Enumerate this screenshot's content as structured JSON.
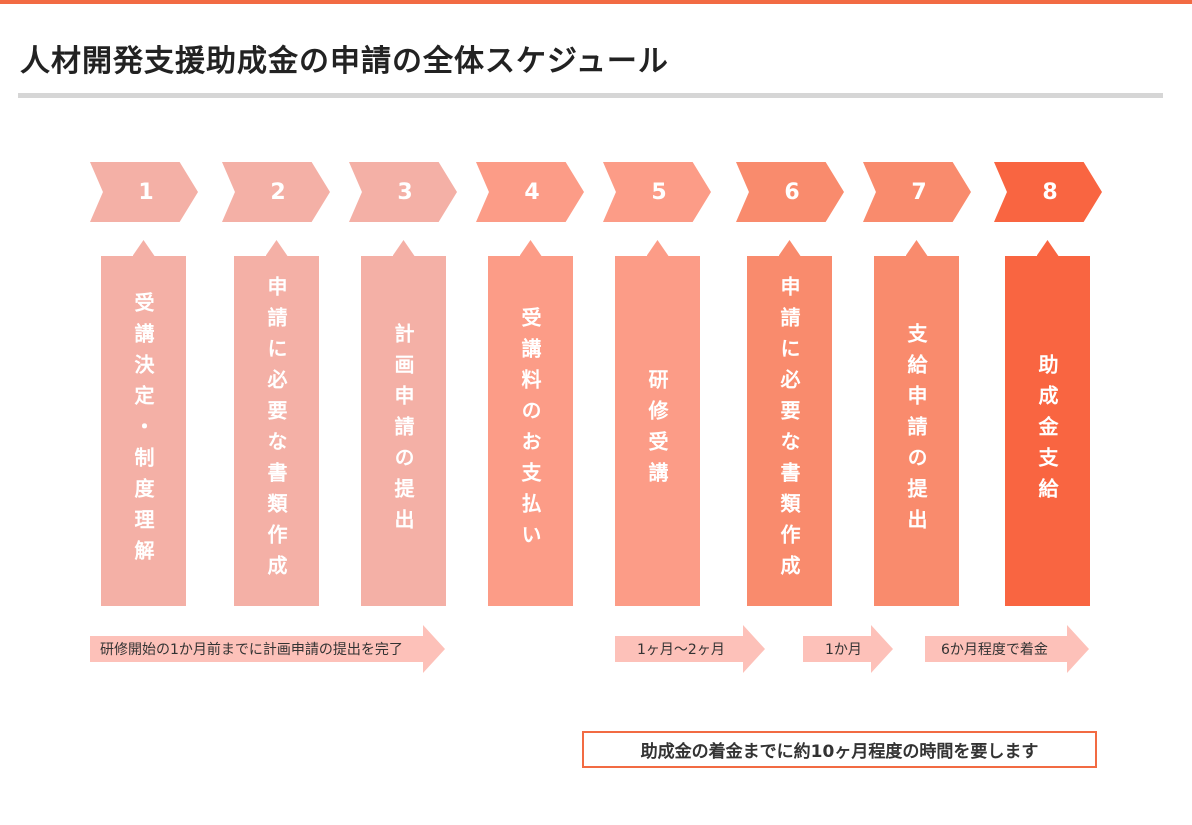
{
  "title": "人材開発支援助成金の申請の全体スケジュール",
  "colors": {
    "accent": "#f26b43",
    "step_light": "#f4b0a6",
    "step_mid": "#fc9c87",
    "step_strong": "#f98b6d",
    "step_final": "#f96541",
    "period_arrow": "#fdc1b9"
  },
  "steps": [
    {
      "number": "1",
      "label": "受講決定・制度理解",
      "color": "#f4b0a6"
    },
    {
      "number": "2",
      "label": "申請に必要な書類作成",
      "color": "#f4b0a6"
    },
    {
      "number": "3",
      "label": "計画申請の提出",
      "color": "#f4b0a6"
    },
    {
      "number": "4",
      "label": "受講料のお支払い",
      "color": "#fc9c87"
    },
    {
      "number": "5",
      "label": "研修受講",
      "color": "#fc9c87"
    },
    {
      "number": "6",
      "label": "申請に必要な書類作成",
      "color": "#f98b6d"
    },
    {
      "number": "7",
      "label": "支給申請の提出",
      "color": "#f98b6d"
    },
    {
      "number": "8",
      "label": "助成金支給",
      "color": "#f96541"
    }
  ],
  "periods": [
    {
      "label": "研修開始の1か月前までに計画申請の提出を完了"
    },
    {
      "label": "1ヶ月〜2ヶ月"
    },
    {
      "label": "1か月"
    },
    {
      "label": "6か月程度で着金"
    }
  ],
  "note": "助成金の着金までに約10ヶ月程度の時間を要します"
}
